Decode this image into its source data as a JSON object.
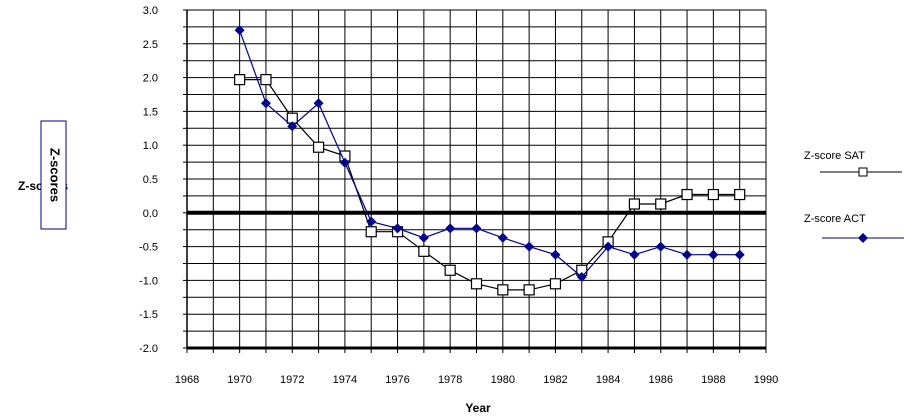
{
  "chart_data": {
    "type": "line",
    "xlabel": "Year",
    "ylabel": "Z-scores",
    "xlim": [
      1968,
      1990
    ],
    "ylim": [
      -2.0,
      3.0
    ],
    "x_ticks": [
      "1968",
      "1970",
      "1972",
      "1974",
      "1976",
      "1978",
      "1980",
      "1982",
      "1984",
      "1986",
      "1988",
      "1990"
    ],
    "y_ticks": [
      "3.0",
      "2.5",
      "2.0",
      "1.5",
      "1.0",
      "0.5",
      "0.0",
      "-0.5",
      "-1.0",
      "-1.5",
      "-2.0"
    ],
    "grid": true,
    "legend_position": "right",
    "series": [
      {
        "name": "Z-score  SAT",
        "marker": "open-square",
        "color": "#000000",
        "x": [
          1970,
          1971,
          1972,
          1973,
          1974,
          1975,
          1976,
          1977,
          1978,
          1979,
          1980,
          1981,
          1982,
          1983,
          1984,
          1985,
          1986,
          1987,
          1988,
          1989
        ],
        "y": [
          1.97,
          1.97,
          1.4,
          0.97,
          0.84,
          -0.28,
          -0.28,
          -0.57,
          -0.85,
          -1.05,
          -1.14,
          -1.14,
          -1.05,
          -0.85,
          -0.43,
          0.13,
          0.13,
          0.27,
          0.27,
          0.27
        ]
      },
      {
        "name": "Z-score  ACT",
        "marker": "filled-diamond",
        "color": "#00008b",
        "x": [
          1970,
          1971,
          1972,
          1973,
          1974,
          1975,
          1976,
          1977,
          1978,
          1979,
          1980,
          1981,
          1982,
          1983,
          1984,
          1985,
          1986,
          1987,
          1988,
          1989
        ],
        "y": [
          2.7,
          1.62,
          1.28,
          1.62,
          0.74,
          -0.13,
          -0.23,
          -0.37,
          -0.23,
          -0.23,
          -0.37,
          -0.5,
          -0.62,
          -0.95,
          -0.5,
          -0.62,
          -0.5,
          -0.62,
          -0.62,
          -0.62
        ]
      }
    ]
  }
}
